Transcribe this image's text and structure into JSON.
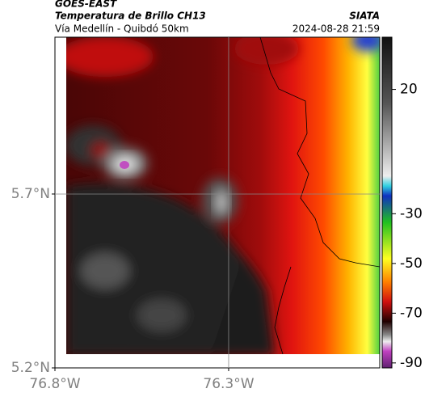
{
  "header": {
    "title": "GOES-EAST",
    "subtitle": "Temperatura de Brillo CH13",
    "region": "Vía Medellín - Quibdó 50km",
    "source": "SIATA",
    "timestamp": "2024-08-28 21:59"
  },
  "map": {
    "xlim": [
      -76.8,
      -75.865
    ],
    "ylim": [
      5.2,
      6.151
    ],
    "xticks": [
      {
        "value": -76.8,
        "label": "76.8°W"
      },
      {
        "value": -76.3,
        "label": "76.3°W"
      }
    ],
    "yticks": [
      {
        "value": 5.2,
        "label": "5.2°N"
      },
      {
        "value": 5.7,
        "label": "5.7°N"
      }
    ],
    "grid": true
  },
  "colorbar": {
    "lim": [
      -92,
      41
    ],
    "ticks": [
      20,
      -30,
      -50,
      -70,
      -90
    ]
  }
}
